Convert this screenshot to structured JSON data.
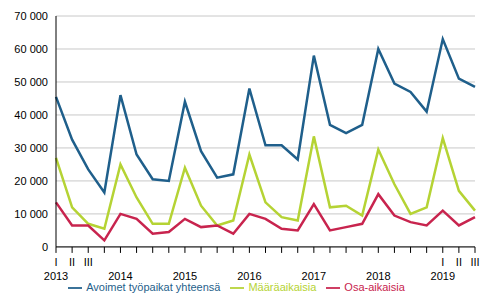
{
  "chart_data": {
    "type": "line",
    "categories": [
      "I",
      "II",
      "III",
      null,
      null,
      null,
      null,
      null,
      null,
      null,
      null,
      null,
      null,
      null,
      null,
      null,
      null,
      null,
      null,
      null,
      null,
      null,
      null,
      null,
      "I",
      "II",
      "III"
    ],
    "year_labels": [
      "2013",
      null,
      null,
      null,
      "2014",
      null,
      null,
      null,
      "2015",
      null,
      null,
      null,
      "2016",
      null,
      null,
      null,
      "2017",
      null,
      null,
      null,
      "2018",
      null,
      null,
      null,
      "2019",
      null,
      null
    ],
    "series": [
      {
        "name": "Avoimet työpaikat yhteensä",
        "color": "#1f5f8b",
        "values": [
          45500,
          32500,
          23500,
          16500,
          46000,
          28000,
          20500,
          20000,
          44000,
          29000,
          21000,
          22000,
          48000,
          30800,
          30800,
          26500,
          58000,
          37000,
          34500,
          37000,
          60000,
          49500,
          47000,
          41000,
          63000,
          51000,
          48500
        ]
      },
      {
        "name": "Määräaikaisia",
        "color": "#b5d334",
        "values": [
          27000,
          12000,
          7000,
          5500,
          25000,
          15000,
          7000,
          7000,
          24000,
          12500,
          6500,
          8000,
          28000,
          13500,
          9000,
          8000,
          33500,
          12000,
          12500,
          9500,
          29500,
          19000,
          10000,
          12000,
          33000,
          17000,
          11000
        ]
      },
      {
        "name": "Osa-aikaisia",
        "color": "#c8244e",
        "values": [
          13500,
          6500,
          6500,
          2000,
          10000,
          8500,
          4000,
          4500,
          8500,
          6000,
          6500,
          4000,
          10000,
          8500,
          5500,
          5000,
          13000,
          5000,
          6000,
          7000,
          16000,
          9500,
          7500,
          6500,
          11000,
          6500,
          9000
        ]
      }
    ],
    "ylim": [
      0,
      70000
    ],
    "yticks": [
      0,
      {
        "value": 10000,
        "label": "10 000"
      },
      {
        "value": 20000,
        "label": "20 000"
      },
      {
        "value": 30000,
        "label": "30 000"
      },
      {
        "value": 40000,
        "label": "40 000"
      },
      {
        "value": 50000,
        "label": "50 000"
      },
      {
        "value": 60000,
        "label": "60 000"
      },
      {
        "value": 70000,
        "label": "70 000"
      }
    ],
    "grid": true,
    "legend": "bottom"
  }
}
